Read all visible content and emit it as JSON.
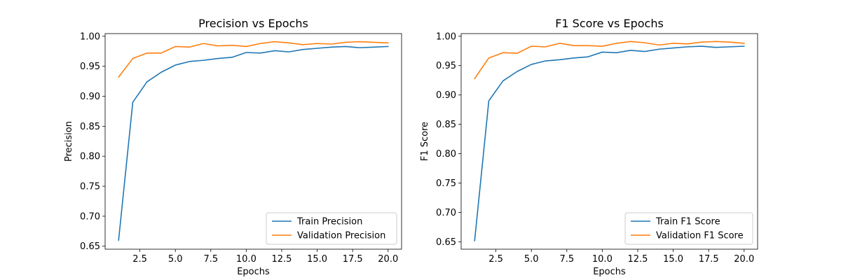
{
  "chart_data": [
    {
      "type": "line",
      "title": "Precision vs Epochs",
      "xlabel": "Epochs",
      "ylabel": "Precision",
      "x": [
        1,
        2,
        3,
        4,
        5,
        6,
        7,
        8,
        9,
        10,
        11,
        12,
        13,
        14,
        15,
        16,
        17,
        18,
        19,
        20
      ],
      "xlim": [
        0.05,
        20.95
      ],
      "ylim": [
        0.645,
        1.0045
      ],
      "xticks": [
        2.5,
        5.0,
        7.5,
        10.0,
        12.5,
        15.0,
        17.5,
        20.0
      ],
      "xtick_labels": [
        "2.5",
        "5.0",
        "7.5",
        "10.0",
        "12.5",
        "15.0",
        "17.5",
        "20.0"
      ],
      "yticks": [
        0.65,
        0.7,
        0.75,
        0.8,
        0.85,
        0.9,
        0.95,
        1.0
      ],
      "ytick_labels": [
        "0.65",
        "0.70",
        "0.75",
        "0.80",
        "0.85",
        "0.90",
        "0.95",
        "1.00"
      ],
      "legend_position": "lower-right",
      "grid": false,
      "series": [
        {
          "name": "Train Precision",
          "color": "#1f77b4",
          "values": [
            0.66,
            0.89,
            0.924,
            0.94,
            0.952,
            0.958,
            0.96,
            0.963,
            0.965,
            0.973,
            0.972,
            0.976,
            0.974,
            0.978,
            0.98,
            0.982,
            0.983,
            0.981,
            0.982,
            0.983
          ]
        },
        {
          "name": "Validation Precision",
          "color": "#ff7f0e",
          "values": [
            0.932,
            0.963,
            0.972,
            0.972,
            0.983,
            0.982,
            0.988,
            0.984,
            0.985,
            0.983,
            0.988,
            0.991,
            0.989,
            0.986,
            0.988,
            0.987,
            0.99,
            0.991,
            0.99,
            0.989
          ]
        }
      ]
    },
    {
      "type": "line",
      "title": "F1 Score vs Epochs",
      "xlabel": "Epochs",
      "ylabel": "F1 Score",
      "x": [
        1,
        2,
        3,
        4,
        5,
        6,
        7,
        8,
        9,
        10,
        11,
        12,
        13,
        14,
        15,
        16,
        17,
        18,
        19,
        20
      ],
      "xlim": [
        0.05,
        20.95
      ],
      "ylim": [
        0.6375,
        1.0045
      ],
      "xticks": [
        2.5,
        5.0,
        7.5,
        10.0,
        12.5,
        15.0,
        17.5,
        20.0
      ],
      "xtick_labels": [
        "2.5",
        "5.0",
        "7.5",
        "10.0",
        "12.5",
        "15.0",
        "17.5",
        "20.0"
      ],
      "yticks": [
        0.65,
        0.7,
        0.75,
        0.8,
        0.85,
        0.9,
        0.95,
        1.0
      ],
      "ytick_labels": [
        "0.65",
        "0.70",
        "0.75",
        "0.80",
        "0.85",
        "0.90",
        "0.95",
        "1.00"
      ],
      "legend_position": "lower-right",
      "grid": false,
      "series": [
        {
          "name": "Train F1 Score",
          "color": "#1f77b4",
          "values": [
            0.652,
            0.89,
            0.924,
            0.94,
            0.952,
            0.958,
            0.96,
            0.963,
            0.965,
            0.973,
            0.972,
            0.976,
            0.974,
            0.978,
            0.98,
            0.982,
            0.983,
            0.981,
            0.982,
            0.983
          ]
        },
        {
          "name": "Validation F1 Score",
          "color": "#ff7f0e",
          "values": [
            0.928,
            0.963,
            0.972,
            0.971,
            0.983,
            0.982,
            0.988,
            0.984,
            0.984,
            0.983,
            0.988,
            0.991,
            0.989,
            0.985,
            0.988,
            0.987,
            0.99,
            0.991,
            0.99,
            0.988
          ]
        }
      ]
    }
  ]
}
